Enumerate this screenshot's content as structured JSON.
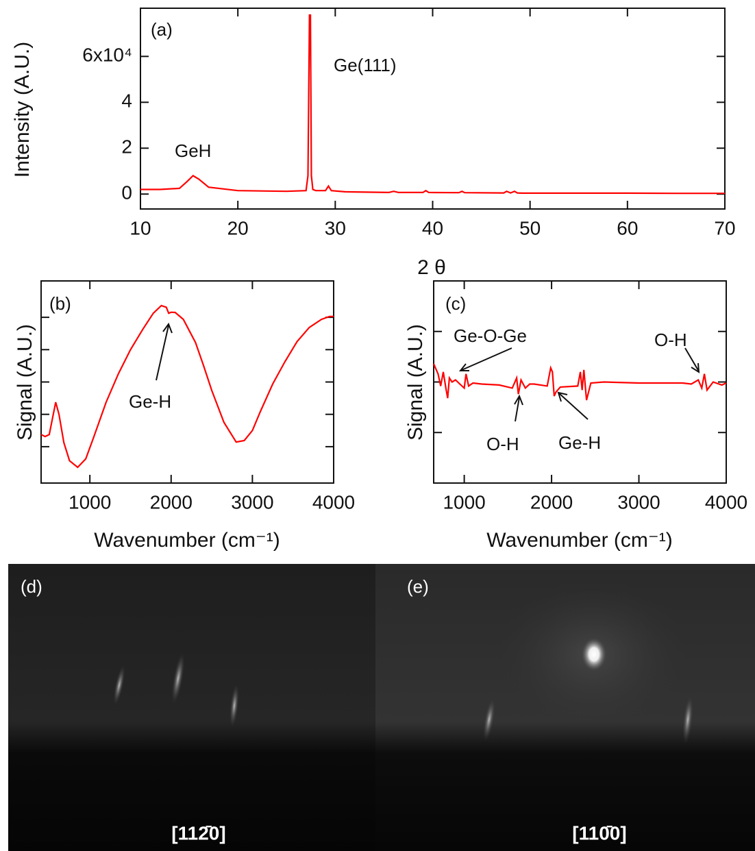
{
  "chart_data": [
    {
      "type": "line",
      "panel": "(a)",
      "y_label": "Intensity (A.U.)",
      "x_label": "2 θ",
      "annotations": [
        "Ge(111)",
        "GeH"
      ],
      "xlim": [
        10,
        70
      ],
      "xticks": [
        10,
        20,
        30,
        40,
        50,
        60,
        70
      ],
      "ylim": [
        -0.65,
        8.1
      ],
      "yticks": [
        0,
        2,
        4,
        {
          "value": 6,
          "label": "6x10⁴"
        }
      ],
      "x": [
        10,
        12,
        14,
        14.8,
        15.4,
        16,
        17,
        20,
        25,
        27,
        27.2,
        27.35,
        27.45,
        27.55,
        27.7,
        28,
        29,
        29.3,
        29.6,
        31,
        35.5,
        36,
        36.5,
        39,
        39.3,
        39.6,
        42.7,
        43,
        43.3,
        47.3,
        47.6,
        48,
        48.4,
        48.7,
        49.2,
        55,
        60,
        65,
        70
      ],
      "series": [
        {
          "color": "#ff0000",
          "values": [
            0.2,
            0.2,
            0.25,
            0.55,
            0.8,
            0.65,
            0.3,
            0.15,
            0.12,
            0.15,
            0.8,
            7.8,
            7.8,
            0.8,
            0.2,
            0.15,
            0.15,
            0.35,
            0.15,
            0.1,
            0.07,
            0.12,
            0.07,
            0.07,
            0.15,
            0.07,
            0.06,
            0.12,
            0.06,
            0.05,
            0.12,
            0.05,
            0.12,
            0.05,
            0.04,
            0.04,
            0.04,
            0.03,
            0.03
          ]
        }
      ]
    },
    {
      "type": "line",
      "panel": "(b)",
      "y_label": "Signal (A.U.)",
      "x_label": "Wavenumber (cm⁻¹)",
      "annotations": [
        "Ge-H"
      ],
      "xlim": [
        400,
        4000
      ],
      "xticks": [
        1000,
        2000,
        3000,
        4000
      ],
      "ylim": [
        0,
        10
      ],
      "yticks": [
        1.8,
        3.4,
        5,
        6.6,
        8.2
      ],
      "x": [
        400,
        450,
        500,
        540,
        580,
        620,
        680,
        750,
        850,
        950,
        1050,
        1200,
        1350,
        1500,
        1650,
        1780,
        1880,
        1940,
        1970,
        2000,
        2050,
        2150,
        2300,
        2400,
        2500,
        2650,
        2800,
        2900,
        3000,
        3100,
        3250,
        3400,
        3550,
        3700,
        3850,
        3950,
        4000
      ],
      "series": [
        {
          "color": "#ff0000",
          "values": [
            2.4,
            2.3,
            2.4,
            3.2,
            4.0,
            3.4,
            2.0,
            1.1,
            0.78,
            1.2,
            2.3,
            4.0,
            5.4,
            6.6,
            7.6,
            8.4,
            8.78,
            8.7,
            8.4,
            8.45,
            8.44,
            8.1,
            6.95,
            5.8,
            4.58,
            3.0,
            2.03,
            2.1,
            2.6,
            3.56,
            4.9,
            6.0,
            7.0,
            7.7,
            8.1,
            8.24,
            8.24
          ]
        }
      ]
    },
    {
      "type": "line",
      "panel": "(c)",
      "y_label": "Signal (A.U.)",
      "x_label": "Wavenumber (cm⁻¹)",
      "annotations": [
        "Ge-O-Ge",
        "O-H",
        "O-H",
        "Ge-H"
      ],
      "xlim": [
        650,
        4000
      ],
      "xticks": [
        1000,
        2000,
        3000,
        4000
      ],
      "ylim": [
        0,
        10
      ],
      "yticks": [
        2.5,
        5,
        7.5
      ],
      "x": [
        650,
        700,
        730,
        760,
        790,
        810,
        830,
        860,
        900,
        950,
        1000,
        1020,
        1050,
        1100,
        1200,
        1400,
        1550,
        1600,
        1620,
        1650,
        1700,
        1750,
        1800,
        1950,
        1990,
        2010,
        2030,
        2050,
        2100,
        2300,
        2330,
        2350,
        2370,
        2400,
        2450,
        2600,
        3000,
        3500,
        3600,
        3680,
        3720,
        3750,
        3780,
        3850,
        3950,
        4000
      ],
      "series": [
        {
          "color": "#ff0000",
          "values": [
            5.9,
            5.4,
            4.8,
            5.5,
            4.7,
            4.2,
            5.2,
            5.0,
            5.1,
            4.9,
            4.7,
            5.4,
            4.8,
            4.95,
            4.9,
            4.85,
            4.7,
            5.2,
            4.4,
            5.1,
            4.7,
            4.9,
            4.9,
            4.8,
            5.7,
            5.5,
            4.3,
            4.5,
            4.75,
            4.8,
            5.5,
            4.6,
            5.6,
            4.1,
            4.95,
            5.0,
            4.95,
            4.95,
            4.9,
            5.1,
            4.7,
            5.4,
            4.6,
            5.0,
            4.85,
            4.95
          ]
        }
      ]
    }
  ],
  "images": [
    {
      "label": "(d)",
      "caption": "[112̄0]"
    },
    {
      "label": "(e)",
      "caption": "[110̄0]"
    }
  ]
}
